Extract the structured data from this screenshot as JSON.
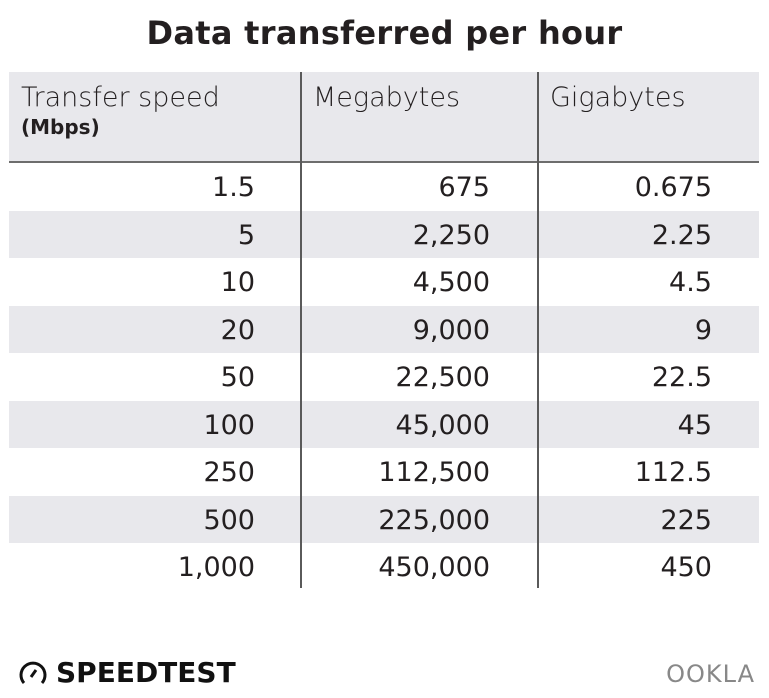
{
  "chart_data": {
    "type": "table",
    "title": "Data transferred per hour",
    "columns": [
      {
        "label": "Transfer speed",
        "sublabel": "(Mbps)"
      },
      {
        "label": "Megabytes",
        "sublabel": ""
      },
      {
        "label": "Gigabytes",
        "sublabel": ""
      }
    ],
    "rows": [
      [
        "1.5",
        "675",
        "0.675"
      ],
      [
        "5",
        "2,250",
        "2.25"
      ],
      [
        "10",
        "4,500",
        "4.5"
      ],
      [
        "20",
        "9,000",
        "9"
      ],
      [
        "50",
        "22,500",
        "22.5"
      ],
      [
        "100",
        "45,000",
        "45"
      ],
      [
        "250",
        "112,500",
        "112.5"
      ],
      [
        "500",
        "225,000",
        "225"
      ],
      [
        "1,000",
        "450,000",
        "450"
      ]
    ]
  },
  "footer": {
    "brand": "SPEEDTEST",
    "partner": "OOKLA"
  },
  "colors": {
    "header_bg": "#e8e8ec",
    "stripe": "#e8e8ec",
    "text": "#231f20"
  }
}
